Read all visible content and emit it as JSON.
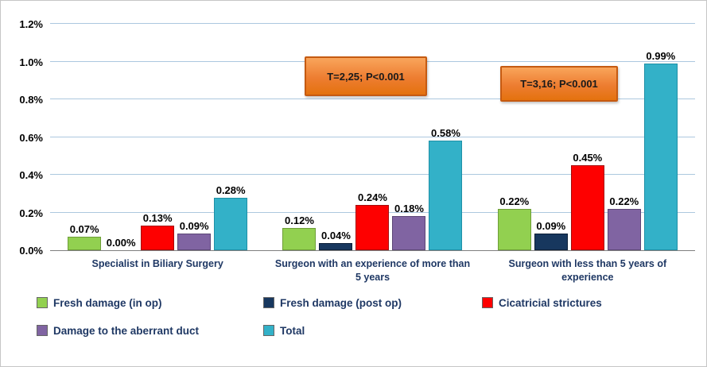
{
  "chart_data": {
    "type": "bar",
    "title": "",
    "categories": [
      "Specialist in Biliary Surgery",
      "Surgeon with an experience of more than 5 years",
      "Surgeon with less than 5 years of experience"
    ],
    "series": [
      {
        "name": "Fresh damage (in op)",
        "color": "#92D050",
        "border": "#6E9E38",
        "values": [
          0.07,
          0.12,
          0.22
        ],
        "labels": [
          "0.07%",
          "0.12%",
          "0.22%"
        ]
      },
      {
        "name": "Fresh damage (post op)",
        "color": "#17375E",
        "border": "#0C1F38",
        "values": [
          0.0,
          0.04,
          0.09
        ],
        "labels": [
          "0.00%",
          "0.04%",
          "0.09%"
        ]
      },
      {
        "name": "Cicatricial strictures",
        "color": "#FE0000",
        "border": "#A50B0B",
        "values": [
          0.13,
          0.24,
          0.45
        ],
        "labels": [
          "0.13%",
          "0.24%",
          "0.45%"
        ]
      },
      {
        "name": "Damage to the aberrant duct",
        "color": "#8064A2",
        "border": "#5C4776",
        "values": [
          0.09,
          0.18,
          0.22
        ],
        "labels": [
          "0.09%",
          "0.18%",
          "0.22%"
        ]
      },
      {
        "name": "Total",
        "color": "#33B1C8",
        "border": "#1E90A6",
        "values": [
          0.28,
          0.58,
          0.99
        ],
        "labels": [
          "0.28%",
          "0.58%",
          "0.99%"
        ]
      }
    ],
    "ylim": [
      0,
      1.2
    ],
    "grid": true,
    "legend_position": "bottom",
    "yticks": [
      {
        "label": "0.0%",
        "value": 0.0
      },
      {
        "label": "0.2%",
        "value": 0.2
      },
      {
        "label": "0.4%",
        "value": 0.4
      },
      {
        "label": "0.6%",
        "value": 0.6
      },
      {
        "label": "0.8%",
        "value": 0.8
      },
      {
        "label": "1.0%",
        "value": 1.0
      },
      {
        "label": "1.2%",
        "value": 1.2
      }
    ],
    "annotations": [
      {
        "text": "T=2,25; P<0.001"
      },
      {
        "text": "T=3,16; P<0.001"
      }
    ]
  }
}
